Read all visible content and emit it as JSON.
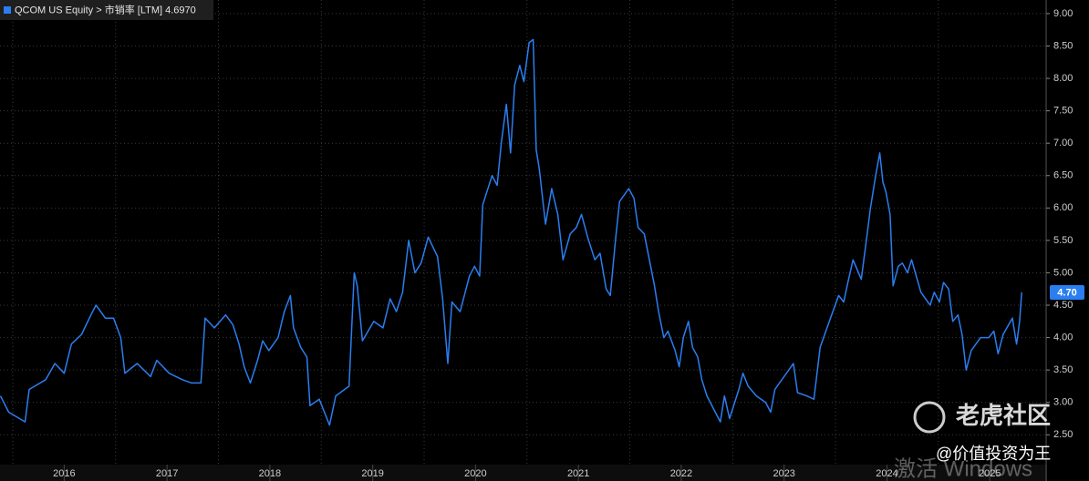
{
  "chart_data": {
    "type": "line",
    "title": "QCOM US Equity > 市销率 [LTM] 4.6970",
    "last_value_label": "4.70",
    "watermarks": [
      "老虎社区",
      "@价值投资为王",
      "激活 Windows"
    ],
    "grid": true,
    "xlim": [
      2015.876,
      2026.03
    ],
    "xticks": [
      2016,
      2017,
      2018,
      2019,
      2020,
      2021,
      2022,
      2023,
      2024,
      2025
    ],
    "ylim": [
      2.04,
      9.21
    ],
    "yticks": [
      {
        "value": 2.5,
        "label": "2.50"
      },
      {
        "value": 3,
        "label": "3.00"
      },
      {
        "value": 3.5,
        "label": "3.50"
      },
      {
        "value": 4,
        "label": "4.00"
      },
      {
        "value": 4.5,
        "label": "4.50"
      },
      {
        "value": 5,
        "label": "5.00"
      },
      {
        "value": 5.5,
        "label": "5.50"
      },
      {
        "value": 6,
        "label": "6.00"
      },
      {
        "value": 6.5,
        "label": "6.50"
      },
      {
        "value": 7,
        "label": "7.00"
      },
      {
        "value": 7.5,
        "label": "7.50"
      },
      {
        "value": 8,
        "label": "8.00"
      },
      {
        "value": 8.5,
        "label": "8.50"
      },
      {
        "value": 9,
        "label": "9.00"
      }
    ],
    "x": [
      2015.88,
      2015.96,
      2016.12,
      2016.16,
      2016.32,
      2016.41,
      2016.5,
      2016.57,
      2016.67,
      2016.76,
      2016.81,
      2016.9,
      2016.98,
      2017.05,
      2017.09,
      2017.21,
      2017.34,
      2017.4,
      2017.52,
      2017.65,
      2017.74,
      2017.83,
      2017.87,
      2017.96,
      2018.07,
      2018.14,
      2018.2,
      2018.25,
      2018.31,
      2018.38,
      2018.43,
      2018.49,
      2018.58,
      2018.64,
      2018.7,
      2018.73,
      2018.8,
      2018.86,
      2018.89,
      2018.98,
      2019.08,
      2019.14,
      2019.27,
      2019.32,
      2019.35,
      2019.4,
      2019.51,
      2019.6,
      2019.67,
      2019.73,
      2019.79,
      2019.85,
      2019.91,
      2019.97,
      2020.04,
      2020.13,
      2020.18,
      2020.23,
      2020.27,
      2020.35,
      2020.44,
      2020.49,
      2020.54,
      2020.57,
      2020.66,
      2020.71,
      2020.75,
      2020.8,
      2020.84,
      2020.88,
      2020.93,
      2020.97,
      2021.02,
      2021.06,
      2021.09,
      2021.12,
      2021.18,
      2021.24,
      2021.3,
      2021.35,
      2021.42,
      2021.48,
      2021.53,
      2021.59,
      2021.66,
      2021.71,
      2021.77,
      2021.81,
      2021.86,
      2021.9,
      2021.99,
      2022.04,
      2022.08,
      2022.14,
      2022.19,
      2022.24,
      2022.28,
      2022.33,
      2022.37,
      2022.44,
      2022.48,
      2022.52,
      2022.57,
      2022.61,
      2022.66,
      2022.7,
      2022.75,
      2022.83,
      2022.88,
      2022.92,
      2022.97,
      2023.06,
      2023.1,
      2023.15,
      2023.23,
      2023.32,
      2023.37,
      2023.41,
      2023.5,
      2023.59,
      2023.63,
      2023.72,
      2023.79,
      2023.85,
      2023.94,
      2024.03,
      2024.08,
      2024.12,
      2024.17,
      2024.25,
      2024.3,
      2024.34,
      2024.39,
      2024.43,
      2024.46,
      2024.49,
      2024.53,
      2024.56,
      2024.61,
      2024.65,
      2024.7,
      2024.74,
      2024.83,
      2024.92,
      2024.96,
      2025.01,
      2025.05,
      2025.1,
      2025.14,
      2025.19,
      2025.23,
      2025.27,
      2025.32,
      2025.41,
      2025.49,
      2025.54,
      2025.58,
      2025.63,
      2025.72,
      2025.76,
      2025.79,
      2025.81
    ],
    "series": [
      {
        "name": "QCOM US Equity",
        "color": "#2a7ef0",
        "values": [
          3.1,
          2.85,
          2.7,
          3.2,
          3.35,
          3.6,
          3.45,
          3.9,
          4.05,
          4.35,
          4.5,
          4.3,
          4.3,
          4.0,
          3.45,
          3.6,
          3.4,
          3.65,
          3.45,
          3.35,
          3.3,
          3.3,
          4.3,
          4.15,
          4.35,
          4.2,
          3.9,
          3.55,
          3.3,
          3.65,
          3.95,
          3.8,
          4.0,
          4.4,
          4.65,
          4.15,
          3.85,
          3.7,
          2.95,
          3.05,
          2.65,
          3.1,
          3.25,
          5.0,
          4.8,
          3.95,
          4.25,
          4.15,
          4.6,
          4.4,
          4.7,
          5.5,
          5.0,
          5.15,
          5.55,
          5.25,
          4.6,
          3.6,
          4.55,
          4.4,
          4.95,
          5.1,
          4.95,
          6.05,
          6.5,
          6.35,
          7.0,
          7.6,
          6.85,
          7.9,
          8.2,
          7.95,
          8.55,
          8.6,
          6.9,
          6.6,
          5.75,
          6.3,
          5.9,
          5.2,
          5.6,
          5.7,
          5.9,
          5.55,
          5.2,
          5.3,
          4.75,
          4.65,
          5.5,
          6.1,
          6.3,
          6.15,
          5.7,
          5.6,
          5.2,
          4.8,
          4.4,
          4.0,
          4.1,
          3.8,
          3.55,
          4.0,
          4.25,
          3.85,
          3.7,
          3.35,
          3.1,
          2.85,
          2.7,
          3.1,
          2.75,
          3.2,
          3.45,
          3.25,
          3.1,
          3.0,
          2.85,
          3.2,
          3.4,
          3.6,
          3.15,
          3.1,
          3.05,
          3.85,
          4.25,
          4.65,
          4.55,
          4.85,
          5.2,
          4.9,
          5.5,
          6.0,
          6.5,
          6.85,
          6.4,
          6.25,
          5.9,
          4.8,
          5.1,
          5.15,
          5.0,
          5.2,
          4.7,
          4.5,
          4.7,
          4.55,
          4.85,
          4.75,
          4.25,
          4.35,
          4.05,
          3.5,
          3.8,
          4.0,
          4.0,
          4.1,
          3.75,
          4.05,
          4.3,
          3.9,
          4.25,
          4.697
        ]
      }
    ]
  }
}
